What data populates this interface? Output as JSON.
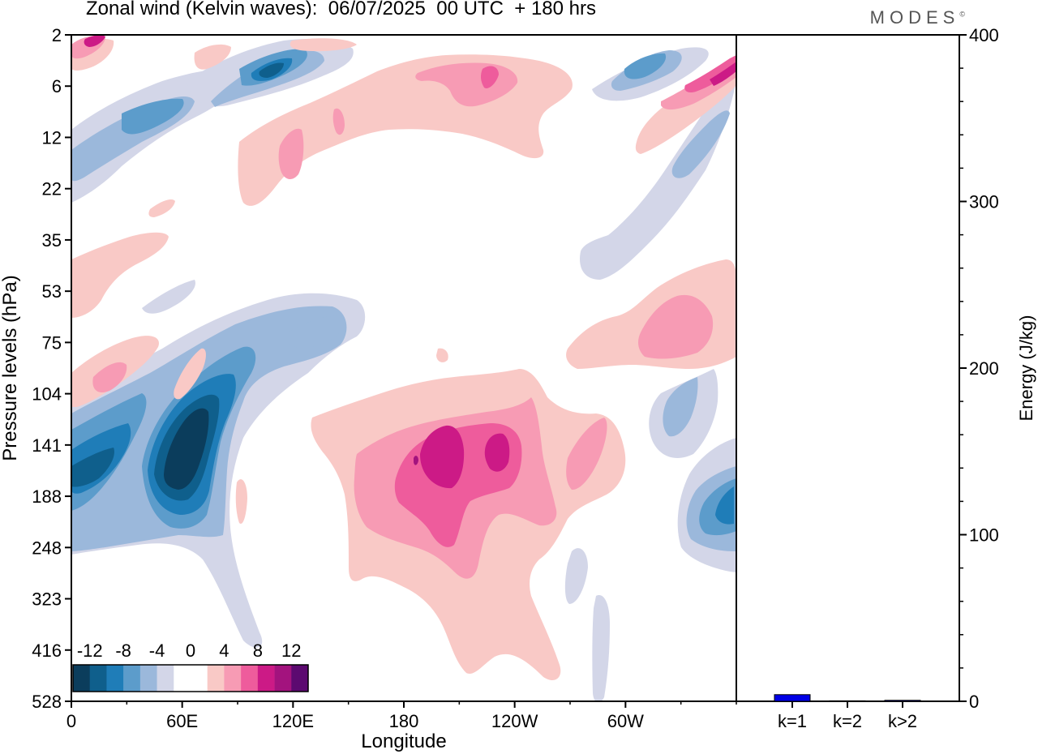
{
  "title": "Zonal wind (Kelvin waves):  06/07/2025  00 UTC  + 180 hrs",
  "brand": "MODES",
  "brand_mark": "©",
  "chart_data": [
    {
      "type": "heatmap",
      "title": "Zonal wind (Kelvin waves):  06/07/2025  00 UTC  + 180 hrs",
      "xlabel": "Longitude",
      "ylabel": "Pressure levels (hPa)",
      "x_ticks": [
        "0",
        "60E",
        "120E",
        "180",
        "120W",
        "60W"
      ],
      "y_ticks": [
        "2",
        "6",
        "12",
        "22",
        "35",
        "53",
        "75",
        "104",
        "141",
        "188",
        "248",
        "323",
        "416",
        "528"
      ],
      "colorbar": {
        "labels": [
          "-12",
          "-8",
          "-4",
          "0",
          "4",
          "8",
          "12"
        ],
        "colors": [
          "#0b3d5c",
          "#0f5f8c",
          "#1f7db8",
          "#5c9ccb",
          "#9bb8db",
          "#d3d6e8",
          "#ffffff",
          "#ffffff",
          "#f9c9c6",
          "#f79bb4",
          "#ee5c9c",
          "#cc1a86",
          "#a3137e",
          "#5c0a70"
        ],
        "location": "bottom-left"
      },
      "colors": {
        "neg12": "#0b3d5c",
        "neg10": "#0f5f8c",
        "neg8": "#1f7db8",
        "neg6": "#5c9ccb",
        "neg4": "#9bb8db",
        "neg2": "#d3d6e8",
        "pos2": "#f9c9c6",
        "pos4": "#f79bb4",
        "pos6": "#ee5c9c",
        "pos8": "#cc1a86",
        "pos10": "#a3137e",
        "pos12": "#5c0a70"
      }
    },
    {
      "type": "bar",
      "categories": [
        "k=1",
        "k=2",
        "k>2"
      ],
      "values": [
        4,
        0.3,
        0.6
      ],
      "ylabel": "Energy (J/kg)",
      "ylim": [
        0,
        400
      ],
      "y_ticks": [
        "0",
        "100",
        "200",
        "300",
        "400"
      ],
      "bar_color": "#0000e6"
    }
  ]
}
